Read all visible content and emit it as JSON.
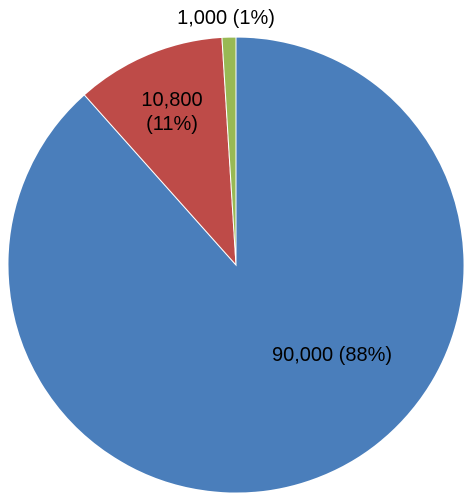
{
  "chart_data": {
    "type": "pie",
    "values": [
      90000,
      10800,
      1000
    ],
    "value_labels": [
      "90,000 (88%)",
      "10,800 (11%)",
      "1,000 (1%)"
    ],
    "colors": [
      "#4a7ebb",
      "#be4b48",
      "#98b954"
    ],
    "start_angle": 90,
    "direction": "clockwise"
  }
}
